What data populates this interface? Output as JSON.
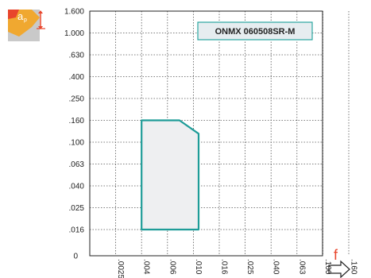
{
  "chart_data": {
    "type": "area",
    "title": "ONMX 060508SR-M",
    "xlabel": "f",
    "ylabel": "ap",
    "y_ticks": [
      "1.600",
      "1.000",
      ".630",
      ".400",
      ".250",
      ".160",
      ".100",
      ".063",
      ".040",
      ".025",
      ".016",
      "0"
    ],
    "x_ticks": [
      ".0025",
      ".004",
      ".006",
      ".010",
      ".016",
      ".025",
      ".040",
      ".063",
      ".100",
      ".160"
    ],
    "scale": "log",
    "grid": true,
    "region": {
      "points": [
        {
          "f": 0.004,
          "ap": 0.016
        },
        {
          "f": 0.004,
          "ap": 0.16
        },
        {
          "f": 0.0078,
          "ap": 0.16
        },
        {
          "f": 0.011,
          "ap": 0.12
        },
        {
          "f": 0.011,
          "ap": 0.016
        }
      ],
      "fill_color": "#eeeff1",
      "stroke_color": "#1e9c98"
    },
    "label_box_color": "#e6edf0",
    "label_box_border": "#2aa6a1"
  },
  "icon": {
    "name": "turning-insert-depth-icon",
    "label_main": "a",
    "label_sub": "p",
    "color": "#e8452c",
    "insert_color": "#f0a830"
  }
}
